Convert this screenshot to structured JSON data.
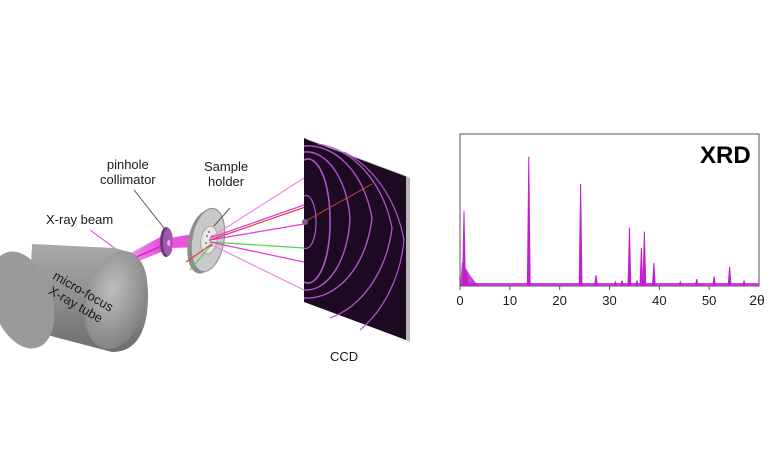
{
  "labels": {
    "xray_tube_line1": "micro-focus",
    "xray_tube_line2": "X-ray tube",
    "xray_beam": "X-ray beam",
    "pinhole_line1": "pinhole",
    "pinhole_line2": "collimator",
    "sample_line1": "Sample",
    "sample_line2": "holder",
    "detector": "CCD"
  },
  "colors": {
    "beam": "#e23ad8",
    "pattern": "#c21fd0",
    "tube": "#8e8e8e",
    "detector_bg": "#1d0a22",
    "rings": "#b35bd6"
  },
  "chart_data": {
    "type": "line",
    "title": "XRD",
    "xlabel": "2θ",
    "ylabel": "",
    "xlim": [
      0,
      60
    ],
    "xticks": [
      "0",
      "10",
      "20",
      "30",
      "40",
      "50"
    ],
    "ylim": [
      0,
      100
    ],
    "grid": false,
    "series": [
      {
        "peaks": [
          {
            "x": 0.8,
            "y": 55
          },
          {
            "x": 1.3,
            "y": 12
          },
          {
            "x": 13.8,
            "y": 95
          },
          {
            "x": 24.2,
            "y": 75
          },
          {
            "x": 27.3,
            "y": 8
          },
          {
            "x": 31.2,
            "y": 3
          },
          {
            "x": 32.5,
            "y": 4
          },
          {
            "x": 34.0,
            "y": 43
          },
          {
            "x": 35.5,
            "y": 4
          },
          {
            "x": 36.4,
            "y": 28
          },
          {
            "x": 37.0,
            "y": 40
          },
          {
            "x": 38.9,
            "y": 17
          },
          {
            "x": 44.2,
            "y": 3
          },
          {
            "x": 47.5,
            "y": 5
          },
          {
            "x": 51.0,
            "y": 7
          },
          {
            "x": 54.1,
            "y": 14
          },
          {
            "x": 57.0,
            "y": 4
          }
        ]
      }
    ]
  }
}
